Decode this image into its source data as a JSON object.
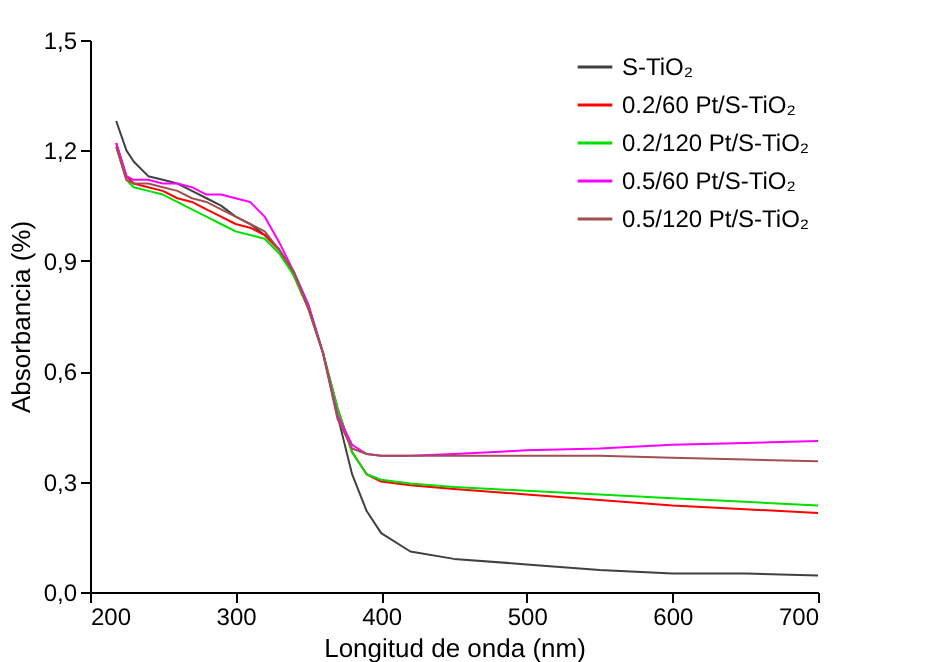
{
  "chart_data": {
    "type": "line",
    "xlabel": "Longitud de onda (nm)",
    "ylabel": "Absorbancia (%)",
    "x": [
      218,
      225,
      230,
      240,
      250,
      260,
      270,
      280,
      290,
      300,
      310,
      320,
      330,
      340,
      350,
      360,
      370,
      380,
      390,
      400,
      420,
      450,
      500,
      550,
      600,
      650,
      700
    ],
    "series": [
      {
        "name": "S-TiO₂",
        "color": "#404040",
        "values": [
          1.28,
          1.2,
          1.17,
          1.13,
          1.12,
          1.11,
          1.09,
          1.07,
          1.05,
          1.02,
          1.0,
          0.97,
          0.93,
          0.87,
          0.78,
          0.65,
          0.48,
          0.32,
          0.22,
          0.16,
          0.11,
          0.09,
          0.075,
          0.06,
          0.05,
          0.05,
          0.045
        ]
      },
      {
        "name": "0.2/60 Pt/S-TiO₂",
        "color": "#ff0000",
        "values": [
          1.22,
          1.13,
          1.11,
          1.1,
          1.09,
          1.07,
          1.06,
          1.04,
          1.02,
          1.0,
          0.99,
          0.97,
          0.93,
          0.86,
          0.77,
          0.65,
          0.5,
          0.38,
          0.32,
          0.3,
          0.29,
          0.28,
          0.265,
          0.25,
          0.235,
          0.225,
          0.215
        ]
      },
      {
        "name": "0.2/120 Pt/S-TiO₂",
        "color": "#00e000",
        "values": [
          1.21,
          1.12,
          1.1,
          1.09,
          1.08,
          1.06,
          1.04,
          1.02,
          1.0,
          0.98,
          0.97,
          0.96,
          0.92,
          0.86,
          0.77,
          0.65,
          0.5,
          0.38,
          0.32,
          0.305,
          0.295,
          0.285,
          0.275,
          0.265,
          0.255,
          0.245,
          0.235
        ]
      },
      {
        "name": "0.5/60 Pt/S-TiO₂",
        "color": "#ff00ff",
        "values": [
          1.22,
          1.13,
          1.12,
          1.12,
          1.11,
          1.11,
          1.1,
          1.08,
          1.08,
          1.07,
          1.06,
          1.02,
          0.95,
          0.87,
          0.78,
          0.65,
          0.48,
          0.4,
          0.375,
          0.37,
          0.37,
          0.375,
          0.385,
          0.39,
          0.4,
          0.405,
          0.41
        ]
      },
      {
        "name": "0.5/120 Pt/S-TiO₂",
        "color": "#a05050",
        "values": [
          1.21,
          1.12,
          1.11,
          1.11,
          1.1,
          1.09,
          1.07,
          1.06,
          1.04,
          1.02,
          1.0,
          0.98,
          0.93,
          0.87,
          0.77,
          0.65,
          0.47,
          0.39,
          0.375,
          0.37,
          0.37,
          0.37,
          0.37,
          0.37,
          0.365,
          0.36,
          0.355
        ]
      }
    ],
    "xlim": [
      200,
      700
    ],
    "xticks": [
      200,
      300,
      400,
      500,
      600,
      700
    ],
    "ylim": [
      0,
      1.5
    ],
    "yticks": [
      {
        "value": 0,
        "label": "0,0"
      },
      {
        "value": 0.3,
        "label": "0,3"
      },
      {
        "value": 0.6,
        "label": "0,6"
      },
      {
        "value": 0.9,
        "label": "0,9"
      },
      {
        "value": 1.2,
        "label": "1,2"
      },
      {
        "value": 1.5,
        "label": "1,5"
      }
    ],
    "grid": false,
    "legend": "top right",
    "line_style": "solid",
    "marker": "none"
  }
}
